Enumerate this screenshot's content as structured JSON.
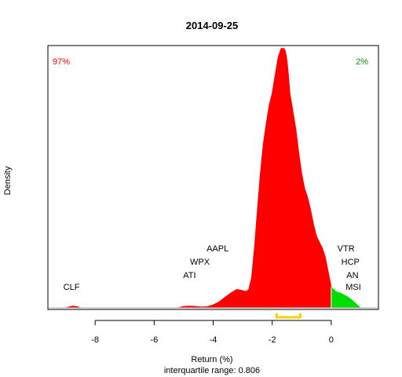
{
  "chart_data": {
    "type": "area",
    "title": "2014-09-25",
    "xlabel": "Return (%)",
    "ylabel": "Density",
    "subtitle": "interquartile range: 0.806",
    "xlim": [
      -9.6,
      1.6
    ],
    "ylim": [
      0,
      0.88
    ],
    "xticks": [
      -8,
      -6,
      -4,
      -2,
      0
    ],
    "tick_labels": [
      "-8",
      "-6",
      "-4",
      "-2",
      "0"
    ],
    "grid": false,
    "split_at": 0,
    "pct_below": "97%",
    "pct_above": "2%",
    "colors": {
      "below": "#ff0000",
      "above": "#00dd00",
      "iqr": "#ffcc00",
      "baseline": "#bbbbbb",
      "pct_below": "#ff0000",
      "pct_above": "#009900"
    },
    "density": {
      "x": [
        -9.0,
        -8.85,
        -8.75,
        -8.6,
        -8.5,
        -5.2,
        -5.0,
        -4.8,
        -4.6,
        -4.4,
        -4.2,
        -4.0,
        -3.8,
        -3.6,
        -3.4,
        -3.2,
        -3.0,
        -2.9,
        -2.8,
        -2.7,
        -2.6,
        -2.5,
        -2.4,
        -2.3,
        -2.2,
        -2.1,
        -2.0,
        -1.9,
        -1.8,
        -1.7,
        -1.6,
        -1.55,
        -1.5,
        -1.45,
        -1.4,
        -1.3,
        -1.2,
        -1.1,
        -1.0,
        -0.9,
        -0.8,
        -0.7,
        -0.6,
        -0.5,
        -0.4,
        -0.3,
        -0.2,
        -0.1,
        0.0,
        0.1,
        0.2,
        0.3,
        0.4,
        0.5,
        0.6,
        0.7,
        0.8,
        0.9,
        1.0
      ],
      "y": [
        0,
        0.004,
        0.006,
        0.004,
        0,
        0,
        0.005,
        0.006,
        0.005,
        0.003,
        0.004,
        0.01,
        0.02,
        0.035,
        0.05,
        0.062,
        0.058,
        0.055,
        0.06,
        0.1,
        0.2,
        0.33,
        0.45,
        0.55,
        0.62,
        0.68,
        0.72,
        0.78,
        0.84,
        0.87,
        0.87,
        0.86,
        0.83,
        0.78,
        0.72,
        0.66,
        0.6,
        0.52,
        0.45,
        0.4,
        0.37,
        0.33,
        0.28,
        0.24,
        0.22,
        0.2,
        0.17,
        0.12,
        0.07,
        0.06,
        0.052,
        0.05,
        0.045,
        0.04,
        0.034,
        0.026,
        0.017,
        0.008,
        0
      ]
    },
    "iqr": [
      -1.85,
      -1.05
    ],
    "annotations": [
      {
        "text": "CLF",
        "x": -8.8,
        "y": 0.06
      },
      {
        "text": "ATI",
        "x": -4.8,
        "y": 0.1
      },
      {
        "text": "WPX",
        "x": -4.45,
        "y": 0.145
      },
      {
        "text": "AAPL",
        "x": -3.85,
        "y": 0.19
      },
      {
        "text": "VTR",
        "x": 0.5,
        "y": 0.19
      },
      {
        "text": "HCP",
        "x": 0.65,
        "y": 0.145
      },
      {
        "text": "AN",
        "x": 0.72,
        "y": 0.1
      },
      {
        "text": "MSI",
        "x": 0.75,
        "y": 0.06
      }
    ]
  }
}
